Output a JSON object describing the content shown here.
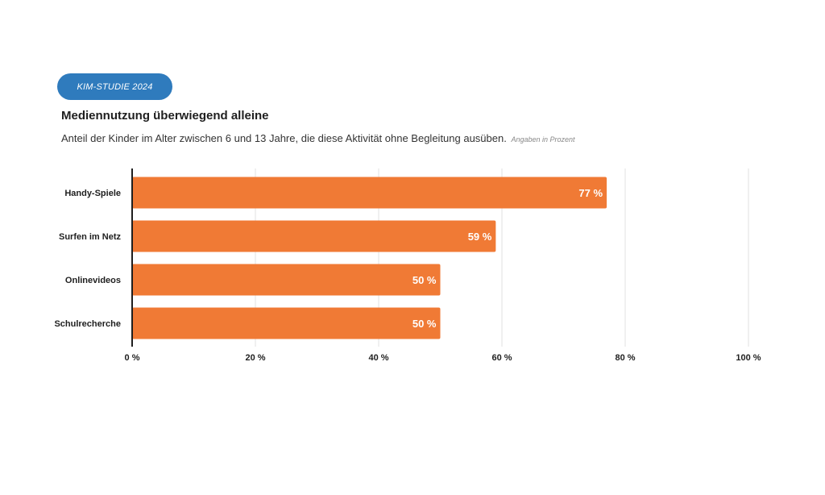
{
  "badge": {
    "label": "KIM-STUDIE 2024"
  },
  "header": {
    "title": "Mediennutzung überwiegend alleine",
    "subtitle": "Anteil der Kinder im Alter zwischen 6 und 13 Jahre, die diese Aktivität ohne Begleitung ausüben.",
    "note": "Angaben in Prozent"
  },
  "colors": {
    "bar": "#f07a35",
    "badge": "#2f7bbd",
    "grid": "#e2e2e2",
    "axis": "#1f1f1f"
  },
  "chart_data": {
    "type": "bar",
    "orientation": "horizontal",
    "categories": [
      "Handy-Spiele",
      "Surfen im Netz",
      "Onlinevideos",
      "Schulrecherche"
    ],
    "values": [
      77,
      59,
      50,
      50
    ],
    "value_labels": [
      "77 %",
      "59 %",
      "50 %",
      "50 %"
    ],
    "xlim": [
      0,
      100
    ],
    "xticks": [
      0,
      20,
      40,
      60,
      80,
      100
    ],
    "xtick_labels": [
      "0 %",
      "20 %",
      "40 %",
      "60 %",
      "80 %",
      "100 %"
    ],
    "grid": true,
    "legend": "none"
  }
}
